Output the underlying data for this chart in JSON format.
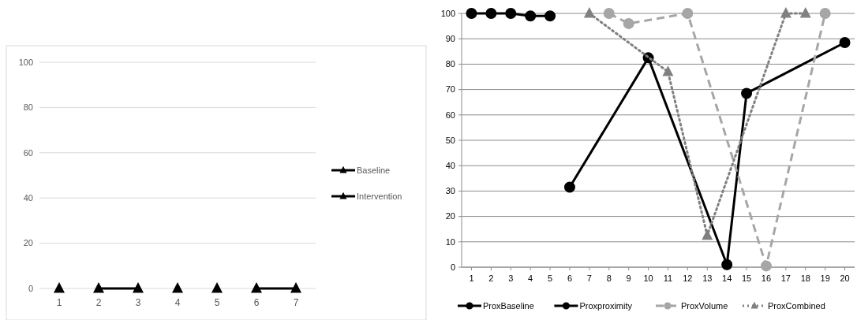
{
  "chart_data": [
    {
      "type": "line",
      "categories": [
        "1",
        "2",
        "3",
        "4",
        "5",
        "6",
        "7"
      ],
      "ylim": [
        0,
        100
      ],
      "yticks": [
        0,
        20,
        40,
        60,
        80,
        100
      ],
      "grid": "y",
      "legend": "right",
      "series": [
        {
          "name": "Baseline",
          "color": "#000000",
          "marker": "triangle",
          "line_style": "solid",
          "values": [
            null,
            0,
            0,
            null,
            0,
            null,
            null
          ]
        },
        {
          "name": "Intervention",
          "color": "#000000",
          "marker": "triangle",
          "line_style": "solid",
          "values": [
            0,
            null,
            null,
            0,
            null,
            0,
            0
          ]
        }
      ]
    },
    {
      "type": "line",
      "xlim": [
        0.5,
        20.5
      ],
      "xticks": [
        1,
        2,
        3,
        4,
        5,
        6,
        7,
        8,
        9,
        10,
        11,
        12,
        13,
        14,
        15,
        16,
        17,
        18,
        19,
        20
      ],
      "ylim": [
        0,
        100
      ],
      "yticks": [
        0,
        10,
        20,
        30,
        40,
        50,
        60,
        70,
        80,
        90,
        100
      ],
      "grid": "y",
      "legend": "bottom",
      "series": [
        {
          "name": "ProxBaseline",
          "color": "#000000",
          "marker": "circle",
          "line_style": "solid",
          "x": [
            1,
            2,
            3,
            4,
            5
          ],
          "values": [
            100,
            100,
            100,
            99,
            99
          ]
        },
        {
          "name": "Proxproximity",
          "color": "#000000",
          "marker": "circle",
          "line_style": "solid",
          "x": [
            6,
            10,
            14,
            15,
            20
          ],
          "values": [
            31.5,
            82.5,
            1,
            68.5,
            88.5
          ]
        },
        {
          "name": "ProxVolume",
          "color": "#a6a6a6",
          "marker": "circle",
          "line_style": "dashed",
          "x": [
            8,
            9,
            12,
            16,
            19
          ],
          "values": [
            100,
            96,
            100,
            0.5,
            100
          ]
        },
        {
          "name": "ProxCombined",
          "color": "#808080",
          "marker": "triangle",
          "line_style": "dotted",
          "x": [
            7,
            11,
            13,
            17,
            18
          ],
          "values": [
            100,
            77,
            12.5,
            100,
            100
          ]
        }
      ]
    }
  ]
}
